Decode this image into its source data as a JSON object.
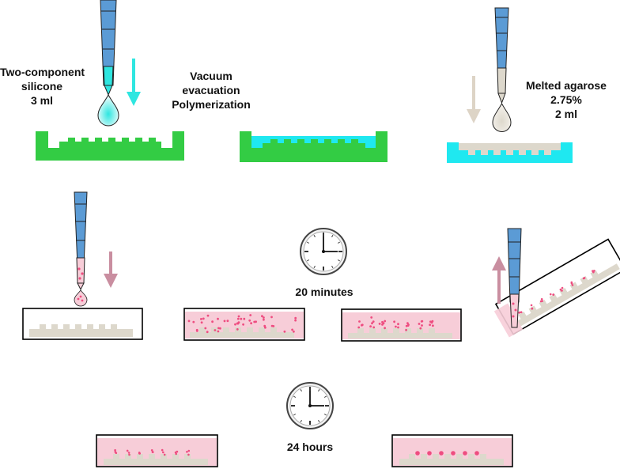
{
  "steps": {
    "silicone": {
      "label_lines": [
        "Two-component",
        "silicone",
        "3 ml"
      ],
      "colors": {
        "liquid": "#2ee6e0",
        "mold": "#33cc44"
      }
    },
    "vacuum": {
      "label_lines": [
        "Vacuum",
        "evacuation",
        "Polymerization"
      ]
    },
    "agarose": {
      "label_lines": [
        "Melted agarose",
        "2.75%",
        "2 ml"
      ],
      "colors": {
        "liquid": "#ddd8cc",
        "mold": "#1fe8f0"
      }
    },
    "incubation_1": {
      "label": "20 minutes"
    },
    "incubation_2": {
      "label": "24 hours"
    }
  },
  "icons": [
    "pipette-icon",
    "clock-icon",
    "arrow-down-icon",
    "arrow-up-icon",
    "drop-icon"
  ],
  "colors": {
    "pipette_blue": "#5b9bd5",
    "cell_medium": "#f7cdd8",
    "cell_dot": "#ee4d80",
    "agarose": "#ddd8cc",
    "arrow_pink": "#c98ea0",
    "arrow_beige": "#ddd4c6",
    "arrow_cyan": "#2ee6e0"
  }
}
